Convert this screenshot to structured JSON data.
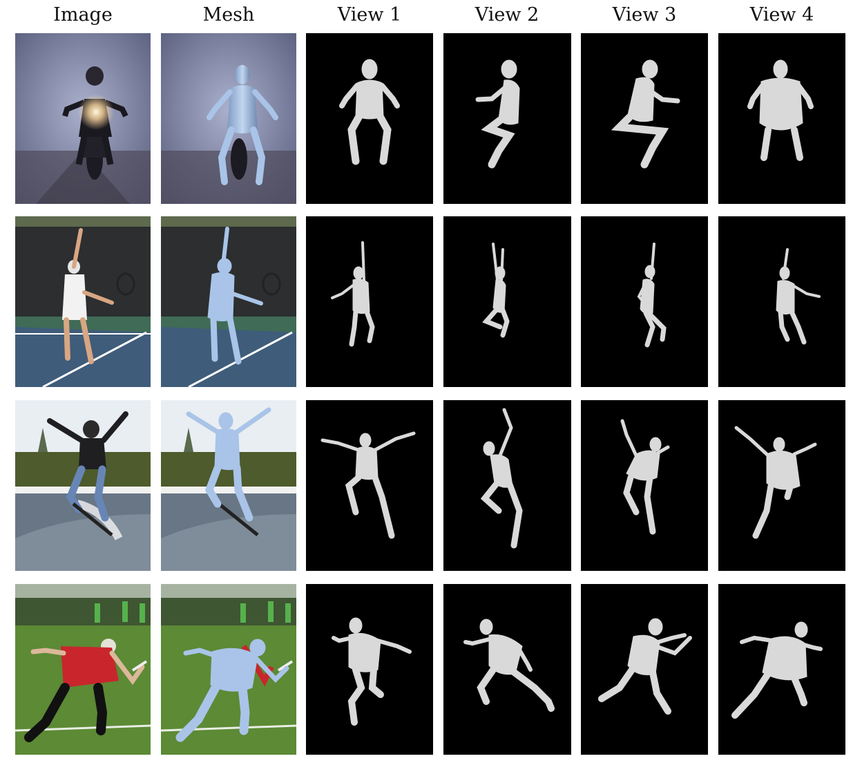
{
  "headers": [
    "Image",
    "Mesh",
    "View 1",
    "View 2",
    "View 3",
    "View 4"
  ],
  "rows": [
    {
      "scene": "motorcycle-rider-in-fog",
      "palette": {
        "sky": "#7f86a6",
        "ground": "#4d4c5a",
        "accent": "#fff1c8"
      }
    },
    {
      "scene": "tennis-serve",
      "palette": {
        "sky": "#2f3232",
        "ground": "#3f6a58",
        "accent": "#ffffff"
      }
    },
    {
      "scene": "skateboard-jump",
      "palette": {
        "sky": "#dfe6ee",
        "ground": "#6f7d8c",
        "accent": "#4b5a2e"
      }
    },
    {
      "scene": "ultimate-frisbee-throw",
      "palette": {
        "sky": "#a7b6a4",
        "ground": "#5b8a36",
        "accent": "#c8262c"
      }
    }
  ],
  "mesh_color": "#a9c4e8",
  "render_bg": "#000000",
  "render_body": "#d9d9d9"
}
